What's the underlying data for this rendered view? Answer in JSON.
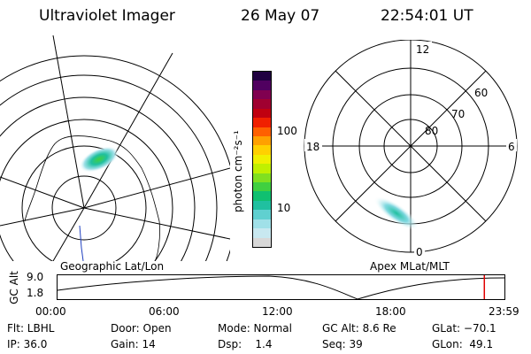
{
  "header": {
    "instrument": "Ultraviolet Imager",
    "date": "26 May 07",
    "time": "22:54:01 UT"
  },
  "colorbar": {
    "unit_label": "photon cm⁻²s⁻¹",
    "ticks": [
      "100",
      "10"
    ],
    "scale": "log",
    "colors": [
      "#d8d8d8",
      "#c8e8f0",
      "#a0e0e8",
      "#60d0d0",
      "#20c0a0",
      "#10c070",
      "#40d040",
      "#80e020",
      "#c0f000",
      "#f0f000",
      "#ffd000",
      "#ffa000",
      "#ff6000",
      "#f02000",
      "#c00010",
      "#a00030",
      "#800050",
      "#500060",
      "#200040"
    ]
  },
  "maps": {
    "left_label": "Geographic Lat/Lon",
    "right_label": "Apex MLat/MLT",
    "polar": {
      "mlt_labels": [
        "12",
        "18",
        "6",
        "0"
      ],
      "lat_labels": [
        "60",
        "70",
        "80"
      ]
    }
  },
  "timeline": {
    "axis_label": "GC Alt",
    "y_ticks": [
      "9.0",
      "1.8"
    ],
    "x_ticks": [
      "00:00",
      "06:00",
      "12:00",
      "18:00",
      "23:59"
    ],
    "current_marker_color": "#e00000",
    "current_time_fraction": 0.955
  },
  "info": {
    "row1": [
      {
        "key": "filter",
        "text": "Flt: LBHL"
      },
      {
        "key": "door",
        "text": "Door: Open"
      },
      {
        "key": "mode",
        "text": "Mode: Normal"
      },
      {
        "key": "gc_alt",
        "text": "GC Alt: 8.6 Re"
      },
      {
        "key": "glat",
        "text": "GLat: −70.1"
      }
    ],
    "row2": [
      {
        "key": "ip",
        "text": "IP: 36.0"
      },
      {
        "key": "gain",
        "text": "Gain: 14"
      },
      {
        "key": "dsp",
        "text": "Dsp:    1.4"
      },
      {
        "key": "seq",
        "text": "Seq: 39"
      },
      {
        "key": "glon",
        "text": "GLon:  49.1"
      }
    ]
  }
}
